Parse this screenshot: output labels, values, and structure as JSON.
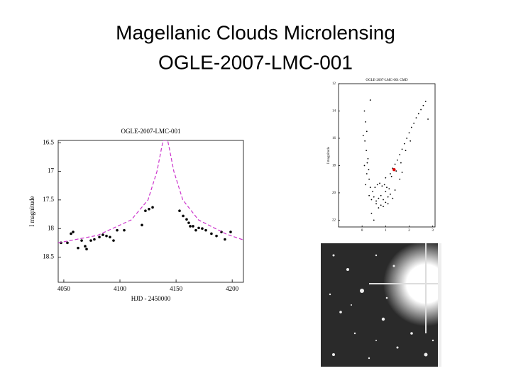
{
  "title": [
    "Magellanic Clouds Microlensing",
    "OGLE-2007-LMC-001"
  ],
  "chart_data": [
    {
      "type": "scatter",
      "title": "OGLE-2007-LMC-001",
      "xlabel": "HJD - 2450000",
      "ylabel": "I magnitude",
      "xlim": [
        4045,
        4210
      ],
      "xticks": [
        4050,
        4100,
        4150,
        4200
      ],
      "ylim": [
        16.46,
        18.94
      ],
      "yticks": [
        16.5,
        17,
        17.5,
        18,
        18.5
      ],
      "invert_y": true,
      "series": [
        {
          "color": "#000000",
          "x": [
            4047.5,
            4053.2,
            4056.4,
            4058.3,
            4062.7,
            4065.9,
            4069,
            4070.3,
            4074.1,
            4077.2,
            4081.7,
            4084.8,
            4088,
            4091.1,
            4094.3,
            4097.5,
            4103.8,
            4119.6,
            4122.7,
            4125.9,
            4129.1,
            4153.1,
            4156.3,
            4159.4,
            4161.3,
            4162.6,
            4165.1,
            4167.6,
            4170.2,
            4173.3,
            4176.5,
            4181.5,
            4186,
            4190.4,
            4193.5,
            4198.6
          ],
          "y": [
            18.25,
            18.25,
            18.09,
            18.06,
            18.34,
            18.21,
            18.31,
            18.36,
            18.21,
            18.19,
            18.15,
            18.11,
            18.13,
            18.15,
            18.21,
            18.03,
            18.03,
            17.94,
            17.69,
            17.66,
            17.63,
            17.69,
            17.78,
            17.84,
            17.9,
            17.96,
            17.96,
            18.03,
            17.99,
            18,
            18.03,
            18.09,
            18.13,
            18.06,
            18.19,
            18.06
          ]
        },
        {
          "type": "line",
          "color": "#cc33cc",
          "dashed": true,
          "x": [
            4045,
            4080,
            4110,
            4125,
            4133,
            4137,
            4138.5,
            4142.5,
            4144,
            4148,
            4156,
            4170,
            4195,
            4210
          ],
          "y": [
            18.25,
            18.12,
            17.85,
            17.5,
            17.0,
            16.6,
            16.46,
            16.46,
            16.6,
            17.0,
            17.5,
            17.85,
            18.1,
            18.2
          ]
        }
      ]
    },
    {
      "type": "scatter",
      "title": "OGLE-2007-LMC-001 CMD",
      "ylabel": "I magnitude",
      "xlim": [
        -1,
        3.1
      ],
      "xticks": [
        0,
        1,
        2,
        3
      ],
      "ylim": [
        12,
        22.5
      ],
      "yticks": [
        12,
        14,
        16,
        18,
        20,
        22
      ],
      "invert_y": true,
      "series": [
        {
          "color": "#000000",
          "x": [
            0.1,
            0.15,
            0.2,
            0.12,
            0.18,
            0.25,
            0.1,
            0.2,
            0.3,
            0.15,
            0.22,
            0.28,
            0.05,
            0.35,
            0.3,
            0.4,
            0.5,
            0.6,
            0.7,
            0.8,
            0.9,
            1.0,
            1.1,
            1.2,
            1.3,
            1.4,
            0.45,
            0.55,
            0.65,
            0.75,
            0.85,
            0.95,
            1.05,
            1.15,
            0.6,
            0.8,
            1.0,
            0.9,
            1.1,
            0.7,
            1.2,
            1.3,
            1.4,
            1.5,
            1.6,
            1.7,
            1.8,
            1.9,
            2.0,
            2.1,
            2.2,
            2.3,
            2.4,
            2.5,
            2.6,
            2.7,
            1.25,
            1.45,
            1.65,
            1.85,
            2.05,
            0.4,
            0.5,
            1.6,
            2.8,
            0.35,
            1.0,
            1.7
          ],
          "y": [
            14.0,
            14.8,
            15.5,
            16.2,
            16.9,
            17.5,
            18.0,
            18.6,
            19.0,
            19.4,
            17.8,
            18.3,
            15.8,
            19.6,
            20.2,
            20.5,
            20.3,
            20.6,
            20.4,
            20.2,
            20.5,
            19.9,
            20.3,
            20.1,
            20.4,
            19.8,
            19.9,
            19.6,
            19.4,
            19.3,
            19.5,
            19.4,
            19.6,
            19.7,
            20.8,
            20.9,
            20.7,
            21.0,
            20.8,
            21.1,
            18.6,
            18.2,
            17.9,
            17.6,
            17.2,
            16.8,
            16.4,
            16.0,
            15.6,
            15.2,
            14.9,
            14.5,
            14.2,
            13.9,
            13.6,
            13.3,
            18.8,
            18.4,
            17.8,
            16.9,
            16.2,
            21.5,
            22.0,
            19.0,
            14.6,
            13.2,
            18.9,
            18.5
          ]
        },
        {
          "color": "#dd0000",
          "x": [
            1.36
          ],
          "y": [
            18.3
          ]
        }
      ]
    }
  ]
}
